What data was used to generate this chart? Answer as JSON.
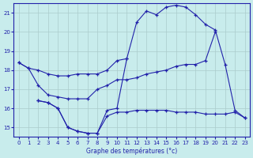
{
  "xlabel": "Graphe des températures (°c)",
  "bg_color": "#c8ecec",
  "grid_color": "#aacccc",
  "line_color": "#2222aa",
  "ylim": [
    14.5,
    21.5
  ],
  "yticks": [
    15,
    16,
    17,
    18,
    19,
    20,
    21
  ],
  "xlim": [
    -0.5,
    23.5
  ],
  "xticks": [
    0,
    1,
    2,
    3,
    4,
    5,
    6,
    7,
    8,
    9,
    10,
    11,
    12,
    13,
    14,
    15,
    16,
    17,
    18,
    19,
    20,
    21,
    22,
    23
  ],
  "curves": [
    {
      "x": [
        0,
        1,
        2,
        3,
        4,
        5,
        6,
        7,
        8,
        9,
        10,
        11
      ],
      "y": [
        18.4,
        18.1,
        18.0,
        17.8,
        17.7,
        17.7,
        17.8,
        17.8,
        17.8,
        18.0,
        18.5,
        18.6
      ]
    },
    {
      "x": [
        0,
        1,
        2,
        3,
        4,
        5,
        6,
        7,
        8,
        9,
        10,
        11,
        12,
        13,
        14,
        15,
        16,
        17,
        18,
        19,
        20
      ],
      "y": [
        18.4,
        18.1,
        17.2,
        16.7,
        16.6,
        16.5,
        16.5,
        16.5,
        17.0,
        17.2,
        17.5,
        17.5,
        17.6,
        17.8,
        17.9,
        18.0,
        18.2,
        18.3,
        18.3,
        18.5,
        20.0
      ]
    },
    {
      "x": [
        2,
        3,
        4,
        5,
        6,
        7,
        8,
        9,
        10,
        11,
        12,
        13,
        14,
        15,
        16,
        17,
        18,
        19,
        20,
        21,
        22,
        23
      ],
      "y": [
        16.4,
        16.3,
        16.0,
        15.0,
        14.8,
        14.7,
        14.7,
        15.9,
        16.0,
        18.6,
        20.5,
        21.1,
        20.9,
        21.3,
        21.4,
        21.3,
        20.9,
        20.4,
        20.1,
        18.3,
        15.9,
        15.5
      ]
    },
    {
      "x": [
        2,
        3,
        4,
        5,
        6,
        7,
        8,
        9,
        10,
        11,
        12,
        13,
        14,
        15,
        16,
        17,
        18,
        19,
        20,
        21,
        22,
        23
      ],
      "y": [
        16.4,
        16.3,
        16.0,
        15.0,
        14.8,
        14.7,
        14.7,
        15.6,
        15.8,
        15.8,
        15.9,
        15.9,
        15.9,
        15.9,
        15.8,
        15.8,
        15.8,
        15.7,
        15.7,
        15.7,
        15.8,
        15.5
      ]
    }
  ]
}
